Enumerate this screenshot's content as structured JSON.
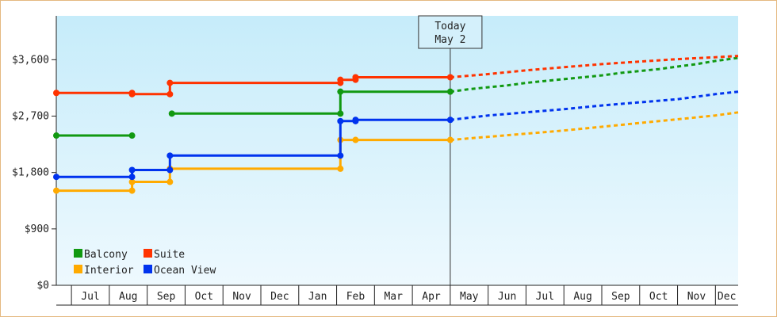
{
  "chart_data": {
    "type": "line",
    "title": "",
    "xlabel": "",
    "ylabel": "",
    "x_unit": "months since start (0 = start of Jul, 2nd year)",
    "x_range": [
      -0.4,
      17.6
    ],
    "ylim": [
      0,
      4300
    ],
    "y_ticks": [
      0,
      900,
      1800,
      2700,
      3600
    ],
    "y_tick_labels": [
      "$0",
      "$900",
      "$1,800",
      "$2,700",
      "$3,600"
    ],
    "month_ticks": [
      "Jul",
      "Aug",
      "Sep",
      "Oct",
      "Nov",
      "Dec",
      "Jan",
      "Feb",
      "Mar",
      "Apr",
      "May",
      "Jun",
      "Jul",
      "Aug",
      "Sep",
      "Oct",
      "Nov",
      "Dec"
    ],
    "today_label_line1": "Today",
    "today_label_line2": "May 2",
    "today_x": 10.0,
    "grid": false,
    "legend_position": "bottom-left",
    "series": [
      {
        "name": "Balcony",
        "color": "#119911",
        "segments": [
          [
            [
              -0.4,
              2390
            ],
            [
              1.6,
              2390
            ]
          ],
          [
            [
              2.65,
              2740
            ],
            [
              7.1,
              2740
            ],
            [
              7.1,
              3090
            ],
            [
              10.0,
              3090
            ]
          ]
        ],
        "points": [
          [
            -0.4,
            2390
          ],
          [
            1.6,
            2390
          ],
          [
            2.65,
            2740
          ],
          [
            7.1,
            2740
          ],
          [
            7.1,
            3090
          ],
          [
            10.0,
            3090
          ]
        ],
        "forecast": [
          [
            10.0,
            3090
          ],
          [
            10.5,
            3130
          ],
          [
            11.0,
            3160
          ],
          [
            11.5,
            3190
          ],
          [
            12.0,
            3230
          ],
          [
            12.5,
            3260
          ],
          [
            13.0,
            3290
          ],
          [
            13.5,
            3320
          ],
          [
            14.0,
            3350
          ],
          [
            14.5,
            3390
          ],
          [
            15.0,
            3420
          ],
          [
            15.5,
            3450
          ],
          [
            16.0,
            3490
          ],
          [
            16.5,
            3530
          ],
          [
            17.0,
            3580
          ],
          [
            17.6,
            3630
          ]
        ]
      },
      {
        "name": "Suite",
        "color": "#ff3300",
        "segments": [
          [
            [
              -0.4,
              3070
            ],
            [
              1.6,
              3070
            ],
            [
              1.6,
              3050
            ],
            [
              2.6,
              3050
            ],
            [
              2.6,
              3230
            ],
            [
              7.1,
              3230
            ],
            [
              7.1,
              3280
            ],
            [
              7.5,
              3280
            ],
            [
              7.5,
              3320
            ],
            [
              10.0,
              3320
            ]
          ]
        ],
        "points": [
          [
            -0.4,
            3070
          ],
          [
            1.6,
            3070
          ],
          [
            1.6,
            3050
          ],
          [
            2.6,
            3050
          ],
          [
            2.6,
            3230
          ],
          [
            7.1,
            3230
          ],
          [
            7.1,
            3280
          ],
          [
            7.5,
            3280
          ],
          [
            7.5,
            3320
          ],
          [
            10.0,
            3320
          ]
        ],
        "forecast": [
          [
            10.0,
            3320
          ],
          [
            11.0,
            3370
          ],
          [
            12.0,
            3430
          ],
          [
            13.0,
            3480
          ],
          [
            14.0,
            3530
          ],
          [
            15.0,
            3570
          ],
          [
            16.0,
            3610
          ],
          [
            17.0,
            3640
          ],
          [
            17.6,
            3660
          ]
        ]
      },
      {
        "name": "Interior",
        "color": "#ffaa00",
        "segments": [
          [
            [
              -0.4,
              1510
            ],
            [
              1.6,
              1510
            ],
            [
              1.6,
              1650
            ],
            [
              2.6,
              1650
            ],
            [
              2.6,
              1860
            ],
            [
              7.1,
              1860
            ],
            [
              7.1,
              2320
            ],
            [
              7.5,
              2320
            ],
            [
              10.0,
              2320
            ]
          ]
        ],
        "points": [
          [
            -0.4,
            1510
          ],
          [
            1.6,
            1510
          ],
          [
            1.6,
            1650
          ],
          [
            2.6,
            1650
          ],
          [
            2.6,
            1860
          ],
          [
            7.1,
            1860
          ],
          [
            7.1,
            2320
          ],
          [
            7.5,
            2320
          ],
          [
            10.0,
            2320
          ]
        ],
        "forecast": [
          [
            10.0,
            2320
          ],
          [
            11.0,
            2370
          ],
          [
            12.0,
            2420
          ],
          [
            13.0,
            2470
          ],
          [
            14.0,
            2530
          ],
          [
            15.0,
            2590
          ],
          [
            16.0,
            2650
          ],
          [
            17.0,
            2710
          ],
          [
            17.6,
            2760
          ]
        ]
      },
      {
        "name": "Ocean View",
        "color": "#0033ee",
        "segments": [
          [
            [
              -0.4,
              1730
            ],
            [
              1.6,
              1730
            ],
            [
              1.6,
              1840
            ],
            [
              2.6,
              1840
            ],
            [
              2.6,
              2070
            ],
            [
              7.1,
              2070
            ],
            [
              7.1,
              2620
            ],
            [
              7.5,
              2620
            ],
            [
              7.5,
              2640
            ],
            [
              10.0,
              2640
            ]
          ]
        ],
        "points": [
          [
            -0.4,
            1730
          ],
          [
            1.6,
            1730
          ],
          [
            1.6,
            1840
          ],
          [
            2.6,
            1840
          ],
          [
            2.6,
            2070
          ],
          [
            7.1,
            2070
          ],
          [
            7.1,
            2620
          ],
          [
            7.5,
            2620
          ],
          [
            7.5,
            2640
          ],
          [
            10.0,
            2640
          ]
        ],
        "forecast": [
          [
            10.0,
            2640
          ],
          [
            11.0,
            2710
          ],
          [
            12.0,
            2760
          ],
          [
            13.0,
            2810
          ],
          [
            14.0,
            2870
          ],
          [
            15.0,
            2920
          ],
          [
            16.0,
            2970
          ],
          [
            17.0,
            3050
          ],
          [
            17.6,
            3090
          ]
        ]
      }
    ]
  },
  "legend": {
    "items": [
      {
        "label": "Balcony",
        "color": "#119911"
      },
      {
        "label": "Suite",
        "color": "#ff3300"
      },
      {
        "label": "Interior",
        "color": "#ffaa00"
      },
      {
        "label": "Ocean View",
        "color": "#0033ee"
      }
    ]
  },
  "colors": {
    "plot_bg_top": "#c6ecfa",
    "plot_bg_bottom": "#eef9fe",
    "frame_border": "#e5b981"
  }
}
